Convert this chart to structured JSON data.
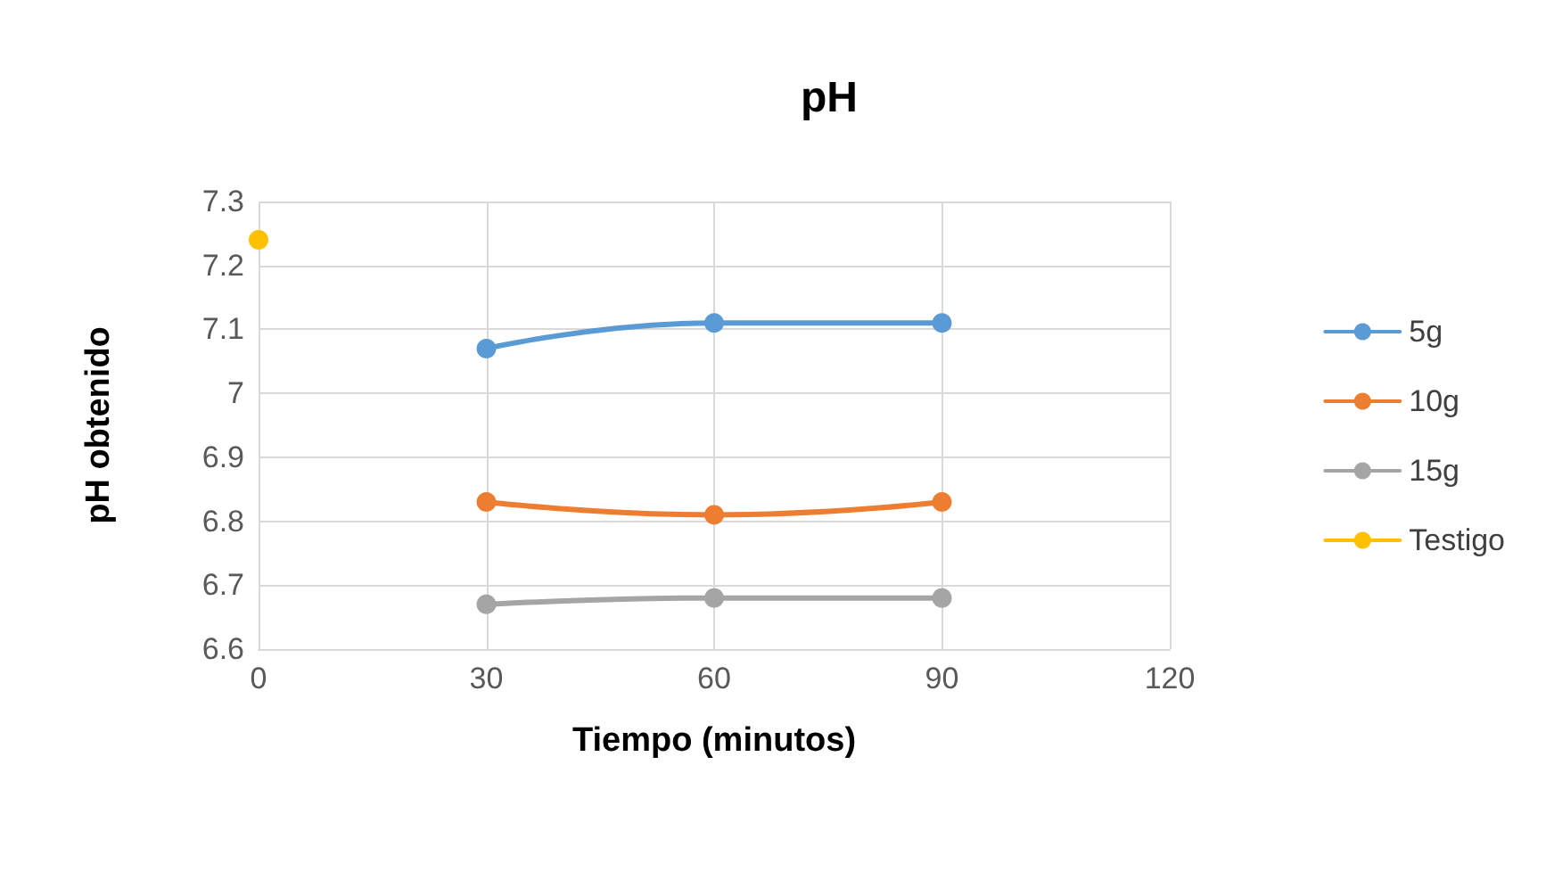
{
  "chart_data": {
    "type": "line",
    "title": "pH",
    "xlabel": "Tiempo (minutos)",
    "ylabel": "pH obtenido",
    "xlim": [
      0,
      120
    ],
    "xticks": [
      0,
      30,
      60,
      90,
      120
    ],
    "ylim": [
      6.6,
      7.3
    ],
    "yticks": [
      6.6,
      6.7,
      6.8,
      6.9,
      7,
      7.1,
      7.2,
      7.3
    ],
    "series": [
      {
        "name": "5g",
        "color": "#5b9bd5",
        "x": [
          30,
          60,
          90
        ],
        "values": [
          7.07,
          7.11,
          7.11
        ]
      },
      {
        "name": "10g",
        "color": "#ed7d31",
        "x": [
          30,
          60,
          90
        ],
        "values": [
          6.83,
          6.81,
          6.83
        ]
      },
      {
        "name": "15g",
        "color": "#a5a5a5",
        "x": [
          30,
          60,
          90
        ],
        "values": [
          6.67,
          6.68,
          6.68
        ]
      },
      {
        "name": "Testigo",
        "color": "#ffc000",
        "x": [
          0
        ],
        "values": [
          7.24
        ]
      }
    ],
    "grid": true,
    "legend": "right",
    "marker": "circle"
  }
}
